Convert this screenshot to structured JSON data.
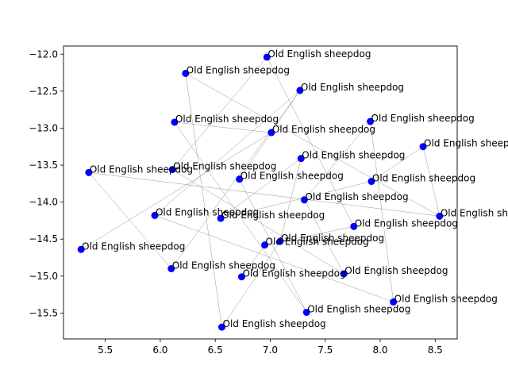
{
  "chart_data": {
    "type": "scatter",
    "title": "",
    "xlabel": "",
    "ylabel": "",
    "xlim": [
      5.12,
      8.7
    ],
    "ylim": [
      -15.85,
      -11.89
    ],
    "xticks": [
      5.5,
      6.0,
      6.5,
      7.0,
      7.5,
      8.0,
      8.5
    ],
    "yticks": [
      -15.5,
      -15.0,
      -14.5,
      -14.0,
      -13.5,
      -13.0,
      -12.5,
      -12.0
    ],
    "xtick_labels": [
      "5.5",
      "6.0",
      "6.5",
      "7.0",
      "7.5",
      "8.0",
      "8.5"
    ],
    "ytick_labels": [
      "−15.5",
      "−15.0",
      "−14.5",
      "−14.0",
      "−13.5",
      "−13.0",
      "−12.5",
      "−12.0"
    ],
    "grid": false,
    "marker_color": "#0000ff",
    "line_color": "#808080",
    "points": [
      {
        "x": 6.97,
        "y": -12.04,
        "label": "Old English sheepdog"
      },
      {
        "x": 6.23,
        "y": -12.26,
        "label": "Old English sheepdog"
      },
      {
        "x": 7.27,
        "y": -12.49,
        "label": "Old English sheepdog"
      },
      {
        "x": 6.13,
        "y": -12.92,
        "label": "Old English sheepdog"
      },
      {
        "x": 7.91,
        "y": -12.91,
        "label": "Old English sheepdog"
      },
      {
        "x": 7.01,
        "y": -13.06,
        "label": "Old English sheepdog"
      },
      {
        "x": 8.39,
        "y": -13.25,
        "label": "Old English sheepdog"
      },
      {
        "x": 7.28,
        "y": -13.41,
        "label": "Old English sheepdog"
      },
      {
        "x": 6.11,
        "y": -13.56,
        "label": "Old English sheepdog"
      },
      {
        "x": 5.35,
        "y": -13.6,
        "label": "Old English sheepdog"
      },
      {
        "x": 6.72,
        "y": -13.69,
        "label": "Old English sheepdog"
      },
      {
        "x": 7.92,
        "y": -13.72,
        "label": "Old English sheepdog"
      },
      {
        "x": 7.31,
        "y": -13.97,
        "label": "Old English sheepdog"
      },
      {
        "x": 5.95,
        "y": -14.18,
        "label": "Old English sheepdog"
      },
      {
        "x": 8.54,
        "y": -14.19,
        "label": "Old English sheepdog"
      },
      {
        "x": 6.55,
        "y": -14.22,
        "label": "Old English sheepdog"
      },
      {
        "x": 7.76,
        "y": -14.33,
        "label": "Old English sheepdog"
      },
      {
        "x": 7.09,
        "y": -14.53,
        "label": "Old English sheepdog"
      },
      {
        "x": 6.95,
        "y": -14.58,
        "label": "Old English sheepdog"
      },
      {
        "x": 5.28,
        "y": -14.64,
        "label": "Old English sheepdog"
      },
      {
        "x": 6.1,
        "y": -14.9,
        "label": "Old English sheepdog"
      },
      {
        "x": 7.67,
        "y": -14.97,
        "label": "Old English sheepdog"
      },
      {
        "x": 6.74,
        "y": -15.01,
        "label": "Old English sheepdog"
      },
      {
        "x": 8.12,
        "y": -15.35,
        "label": "Old English sheepdog"
      },
      {
        "x": 7.33,
        "y": -15.49,
        "label": "Old English sheepdog"
      },
      {
        "x": 6.56,
        "y": -15.69,
        "label": "Old English sheepdog"
      }
    ],
    "edges": [
      [
        0,
        16
      ],
      [
        0,
        8
      ],
      [
        1,
        25
      ],
      [
        1,
        14
      ],
      [
        2,
        10
      ],
      [
        2,
        20
      ],
      [
        3,
        5
      ],
      [
        3,
        24
      ],
      [
        4,
        23
      ],
      [
        4,
        12
      ],
      [
        5,
        19
      ],
      [
        6,
        11
      ],
      [
        6,
        14
      ],
      [
        7,
        15
      ],
      [
        7,
        17
      ],
      [
        8,
        21
      ],
      [
        9,
        14
      ],
      [
        10,
        24
      ],
      [
        11,
        15
      ],
      [
        12,
        21
      ],
      [
        13,
        23
      ],
      [
        16,
        18
      ],
      [
        17,
        25
      ],
      [
        18,
        22
      ],
      [
        20,
        9
      ],
      [
        2,
        13
      ]
    ]
  }
}
